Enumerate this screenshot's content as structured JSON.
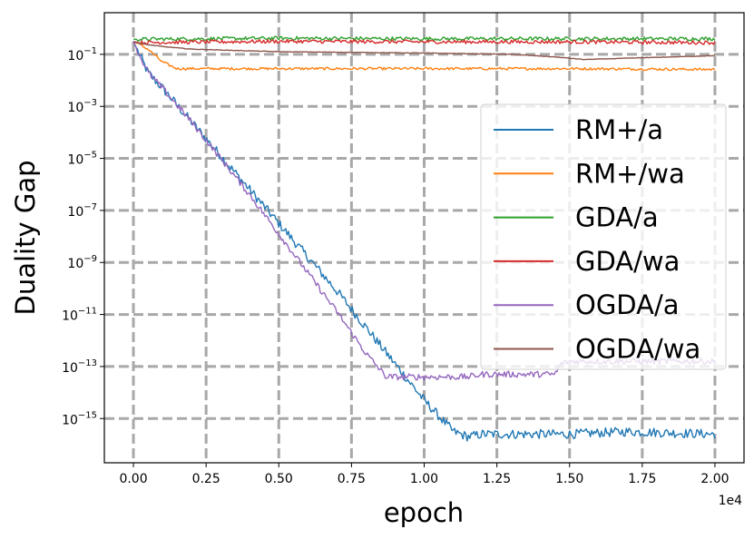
{
  "chart_data": {
    "type": "line",
    "title": "",
    "xlabel": "epoch",
    "ylabel": "Duality Gap",
    "x_offset_text": "1e4",
    "xscale": "linear",
    "yscale": "log",
    "xlim": [
      -0.1,
      2.1
    ],
    "ylim_log10": [
      -16.7,
      0.6
    ],
    "x_ticks": [
      0.0,
      0.25,
      0.5,
      0.75,
      1.0,
      1.25,
      1.5,
      1.75,
      2.0
    ],
    "x_tick_labels": [
      "0.00",
      "0.25",
      "0.50",
      "0.75",
      "1.00",
      "1.25",
      "1.50",
      "1.75",
      "2.00"
    ],
    "y_ticks_exp": [
      -1,
      -3,
      -5,
      -7,
      -9,
      -11,
      -13,
      -15
    ],
    "y_tick_labels": [
      "10",
      "10",
      "10",
      "10",
      "10",
      "10",
      "10",
      "10"
    ],
    "y_tick_superscripts": [
      "−1",
      "−3",
      "−5",
      "−7",
      "−9",
      "−11",
      "−13",
      "−15"
    ],
    "grid": true,
    "legend_position": "center-right",
    "series": [
      {
        "name": "RM+/a",
        "color": "#1f77b4",
        "noise": 0.18,
        "x": [
          0,
          0.02,
          0.05,
          0.1,
          0.2,
          0.3,
          0.4,
          0.5,
          0.6,
          0.7,
          0.8,
          0.9,
          1.0,
          1.1,
          1.15,
          1.2,
          1.3,
          1.5,
          1.7,
          2.0
        ],
        "log10_y": [
          -0.5,
          -1.0,
          -1.7,
          -2.3,
          -3.6,
          -4.9,
          -6.2,
          -7.5,
          -8.8,
          -10.1,
          -11.5,
          -12.9,
          -14.3,
          -15.5,
          -15.7,
          -15.6,
          -15.6,
          -15.6,
          -15.5,
          -15.6
        ]
      },
      {
        "name": "RM+/wa",
        "color": "#ff7f0e",
        "noise": 0.05,
        "x": [
          0,
          0.05,
          0.1,
          0.15,
          0.3,
          0.6,
          1.0,
          1.5,
          2.0
        ],
        "log10_y": [
          -0.5,
          -0.8,
          -1.3,
          -1.55,
          -1.55,
          -1.55,
          -1.55,
          -1.55,
          -1.58
        ]
      },
      {
        "name": "GDA/a",
        "color": "#2ca02c",
        "noise": 0.07,
        "x": [
          0,
          0.5,
          1.0,
          1.5,
          2.0
        ],
        "log10_y": [
          -0.42,
          -0.38,
          -0.4,
          -0.4,
          -0.4
        ]
      },
      {
        "name": "GDA/wa",
        "color": "#d62728",
        "noise": 0.07,
        "x": [
          0,
          0.5,
          1.0,
          1.5,
          2.0
        ],
        "log10_y": [
          -0.55,
          -0.5,
          -0.52,
          -0.52,
          -0.55
        ]
      },
      {
        "name": "OGDA/a",
        "color": "#9467bd",
        "noise": 0.12,
        "x": [
          0,
          0.02,
          0.05,
          0.1,
          0.2,
          0.3,
          0.4,
          0.5,
          0.6,
          0.7,
          0.8,
          0.87,
          0.9,
          1.0,
          1.15,
          1.2,
          1.3,
          1.45,
          1.47,
          1.5,
          1.7,
          2.0
        ],
        "log10_y": [
          -0.5,
          -1.0,
          -1.7,
          -2.3,
          -3.6,
          -5.0,
          -6.4,
          -7.9,
          -9.4,
          -10.9,
          -12.5,
          -13.4,
          -13.4,
          -13.4,
          -13.4,
          -13.3,
          -13.3,
          -13.3,
          -12.9,
          -12.8,
          -12.8,
          -12.8
        ]
      },
      {
        "name": "OGDA/wa",
        "color": "#8c564b",
        "noise": 0.01,
        "x": [
          0,
          0.03,
          0.1,
          0.2,
          0.5,
          1.0,
          1.3,
          1.45,
          1.55,
          1.7,
          2.0
        ],
        "log10_y": [
          -0.5,
          -0.6,
          -0.7,
          -0.8,
          -0.9,
          -0.95,
          -1.0,
          -1.1,
          -1.2,
          -1.15,
          -1.05
        ]
      }
    ]
  }
}
